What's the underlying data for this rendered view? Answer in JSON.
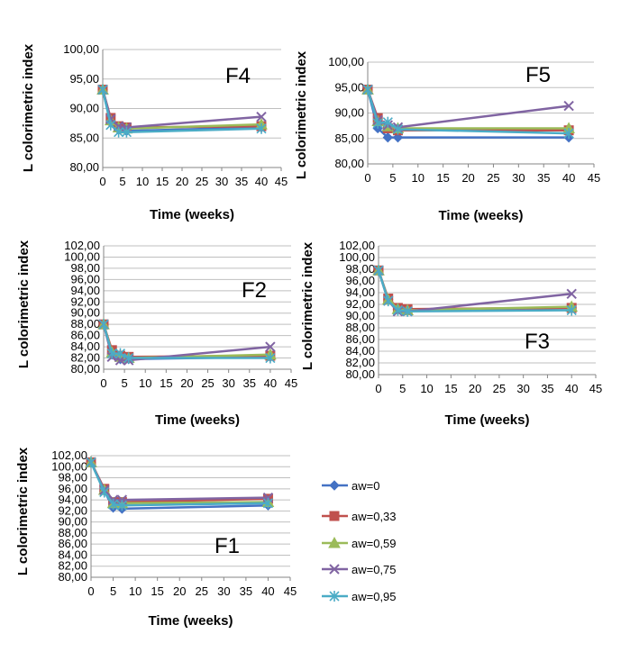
{
  "chart_data": [
    {
      "type": "line",
      "title": "F4",
      "xlabel": "Time (weeks)",
      "ylabel": "L colorimetric index",
      "xlim": [
        0,
        45
      ],
      "ylim": [
        80,
        100
      ],
      "x_ticks": [
        "0",
        "5",
        "10",
        "15",
        "20",
        "25",
        "30",
        "35",
        "40",
        "45"
      ],
      "y_ticks": [
        "80,00",
        "85,00",
        "90,00",
        "95,00",
        "100,00"
      ],
      "grid": "horizontal",
      "series": [
        {
          "name": "aw=0",
          "x": [
            0,
            2,
            4,
            6,
            40
          ],
          "y": [
            93.2,
            87.6,
            86.4,
            86.2,
            86.8
          ]
        },
        {
          "name": "aw=0,33",
          "x": [
            0,
            2,
            4,
            6,
            40
          ],
          "y": [
            93.2,
            88.4,
            87.0,
            86.8,
            87.0
          ]
        },
        {
          "name": "aw=0,59",
          "x": [
            0,
            2,
            4,
            6,
            40
          ],
          "y": [
            93.2,
            88.0,
            86.8,
            86.6,
            87.3
          ]
        },
        {
          "name": "aw=0,75",
          "x": [
            0,
            2,
            4,
            6,
            40
          ],
          "y": [
            93.2,
            88.2,
            87.0,
            86.8,
            88.6
          ]
        },
        {
          "name": "aw=0,95",
          "x": [
            0,
            2,
            4,
            6,
            40
          ],
          "y": [
            93.2,
            87.2,
            86.0,
            86.0,
            86.6
          ]
        }
      ]
    },
    {
      "type": "line",
      "title": "F5",
      "xlabel": "Time (weeks)",
      "ylabel": "L colorimetric index",
      "xlim": [
        0,
        45
      ],
      "ylim": [
        80,
        100
      ],
      "x_ticks": [
        "0",
        "5",
        "10",
        "15",
        "20",
        "25",
        "30",
        "35",
        "40",
        "45"
      ],
      "y_ticks": [
        "80,00",
        "85,00",
        "90,00",
        "95,00",
        "100,00"
      ],
      "grid": "horizontal",
      "series": [
        {
          "name": "aw=0",
          "x": [
            0,
            2,
            4,
            6,
            40
          ],
          "y": [
            94.6,
            87.0,
            85.2,
            85.2,
            85.2
          ]
        },
        {
          "name": "aw=0,33",
          "x": [
            0,
            2,
            4,
            6,
            40
          ],
          "y": [
            94.6,
            89.0,
            87.0,
            86.6,
            86.6
          ]
        },
        {
          "name": "aw=0,59",
          "x": [
            0,
            2,
            4,
            6,
            40
          ],
          "y": [
            94.6,
            88.4,
            87.4,
            87.0,
            87.0
          ]
        },
        {
          "name": "aw=0,75",
          "x": [
            0,
            2,
            4,
            6,
            40
          ],
          "y": [
            94.6,
            88.6,
            87.6,
            87.2,
            91.4
          ]
        },
        {
          "name": "aw=0,95",
          "x": [
            0,
            2,
            4,
            6,
            40
          ],
          "y": [
            94.6,
            88.0,
            88.2,
            86.8,
            86.0
          ]
        }
      ]
    },
    {
      "type": "line",
      "title": "F2",
      "xlabel": "Time (weeks)",
      "ylabel": "L colorimetric index",
      "xlim": [
        0,
        45
      ],
      "ylim": [
        80,
        102
      ],
      "x_ticks": [
        "0",
        "5",
        "10",
        "15",
        "20",
        "25",
        "30",
        "35",
        "40",
        "45"
      ],
      "y_ticks": [
        "80,00",
        "82,00",
        "84,00",
        "86,00",
        "88,00",
        "90,00",
        "92,00",
        "94,00",
        "96,00",
        "98,00",
        "100,00",
        "102,00"
      ],
      "grid": "horizontal",
      "series": [
        {
          "name": "aw=0",
          "x": [
            0,
            2,
            4,
            6,
            40
          ],
          "y": [
            88.0,
            82.6,
            81.8,
            81.8,
            82.2
          ]
        },
        {
          "name": "aw=0,33",
          "x": [
            0,
            2,
            4,
            6,
            40
          ],
          "y": [
            88.0,
            83.4,
            82.4,
            82.2,
            82.4
          ]
        },
        {
          "name": "aw=0,59",
          "x": [
            0,
            2,
            4,
            6,
            40
          ],
          "y": [
            88.0,
            83.0,
            82.2,
            82.0,
            82.6
          ]
        },
        {
          "name": "aw=0,75",
          "x": [
            0,
            2,
            4,
            6,
            40
          ],
          "y": [
            88.0,
            82.2,
            81.6,
            81.6,
            84.0
          ]
        },
        {
          "name": "aw=0,95",
          "x": [
            0,
            2,
            4,
            6,
            40
          ],
          "y": [
            88.0,
            82.8,
            82.8,
            82.0,
            82.0
          ]
        }
      ]
    },
    {
      "type": "line",
      "title": "F3",
      "xlabel": "Time (weeks)",
      "ylabel": "L colorimetric index",
      "xlim": [
        0,
        45
      ],
      "ylim": [
        80,
        102
      ],
      "x_ticks": [
        "0",
        "5",
        "10",
        "15",
        "20",
        "25",
        "30",
        "35",
        "40",
        "45"
      ],
      "y_ticks": [
        "80,00",
        "82,00",
        "84,00",
        "86,00",
        "88,00",
        "90,00",
        "92,00",
        "94,00",
        "96,00",
        "98,00",
        "100,00",
        "102,00"
      ],
      "grid": "horizontal",
      "series": [
        {
          "name": "aw=0",
          "x": [
            0,
            2,
            4,
            6,
            40
          ],
          "y": [
            97.8,
            92.8,
            91.2,
            91.0,
            91.4
          ]
        },
        {
          "name": "aw=0,33",
          "x": [
            0,
            2,
            4,
            6,
            40
          ],
          "y": [
            97.8,
            93.0,
            91.4,
            91.2,
            91.4
          ]
        },
        {
          "name": "aw=0,59",
          "x": [
            0,
            2,
            4,
            6,
            40
          ],
          "y": [
            97.8,
            92.8,
            91.2,
            91.0,
            91.6
          ]
        },
        {
          "name": "aw=0,75",
          "x": [
            0,
            2,
            4,
            6,
            40
          ],
          "y": [
            97.8,
            92.6,
            90.8,
            90.8,
            93.8
          ]
        },
        {
          "name": "aw=0,95",
          "x": [
            0,
            2,
            4,
            6,
            40
          ],
          "y": [
            97.8,
            92.6,
            91.0,
            90.8,
            91.0
          ]
        }
      ]
    },
    {
      "type": "line",
      "title": "F1",
      "xlabel": "Time (weeks)",
      "ylabel": "L colorimetric index",
      "xlim": [
        0,
        45
      ],
      "ylim": [
        80,
        102
      ],
      "x_ticks": [
        "0",
        "5",
        "10",
        "15",
        "20",
        "25",
        "30",
        "35",
        "40",
        "45"
      ],
      "y_ticks": [
        "80,00",
        "82,00",
        "84,00",
        "86,00",
        "88,00",
        "90,00",
        "92,00",
        "94,00",
        "96,00",
        "98,00",
        "100,00",
        "102,00"
      ],
      "grid": "horizontal",
      "series": [
        {
          "name": "aw=0",
          "x": [
            0,
            3,
            5,
            7,
            40
          ],
          "y": [
            100.8,
            95.6,
            92.6,
            92.4,
            93.0
          ]
        },
        {
          "name": "aw=0,33",
          "x": [
            0,
            3,
            5,
            7,
            40
          ],
          "y": [
            100.8,
            96.0,
            93.6,
            93.6,
            94.2
          ]
        },
        {
          "name": "aw=0,59",
          "x": [
            0,
            3,
            5,
            7,
            40
          ],
          "y": [
            100.8,
            95.8,
            93.4,
            93.4,
            93.6
          ]
        },
        {
          "name": "aw=0,75",
          "x": [
            0,
            3,
            5,
            7,
            40
          ],
          "y": [
            100.8,
            95.8,
            94.0,
            94.0,
            94.4
          ]
        },
        {
          "name": "aw=0,95",
          "x": [
            0,
            3,
            5,
            7,
            40
          ],
          "y": [
            100.8,
            95.4,
            93.2,
            93.0,
            93.4
          ]
        }
      ]
    }
  ],
  "legend": {
    "placement": "right of bottom chart",
    "entries": [
      "aw=0",
      "aw=0,33",
      "aw=0,59",
      "aw=0,75",
      "aw=0,95"
    ]
  },
  "styles": {
    "series_colors": [
      "#4472C4",
      "#C0504D",
      "#9BBB59",
      "#8064A2",
      "#4BACC6"
    ],
    "series_markers": [
      "diamond",
      "square",
      "triangle",
      "x",
      "star"
    ],
    "grid_color": "#BFBFBF",
    "axis_color": "#868686"
  }
}
